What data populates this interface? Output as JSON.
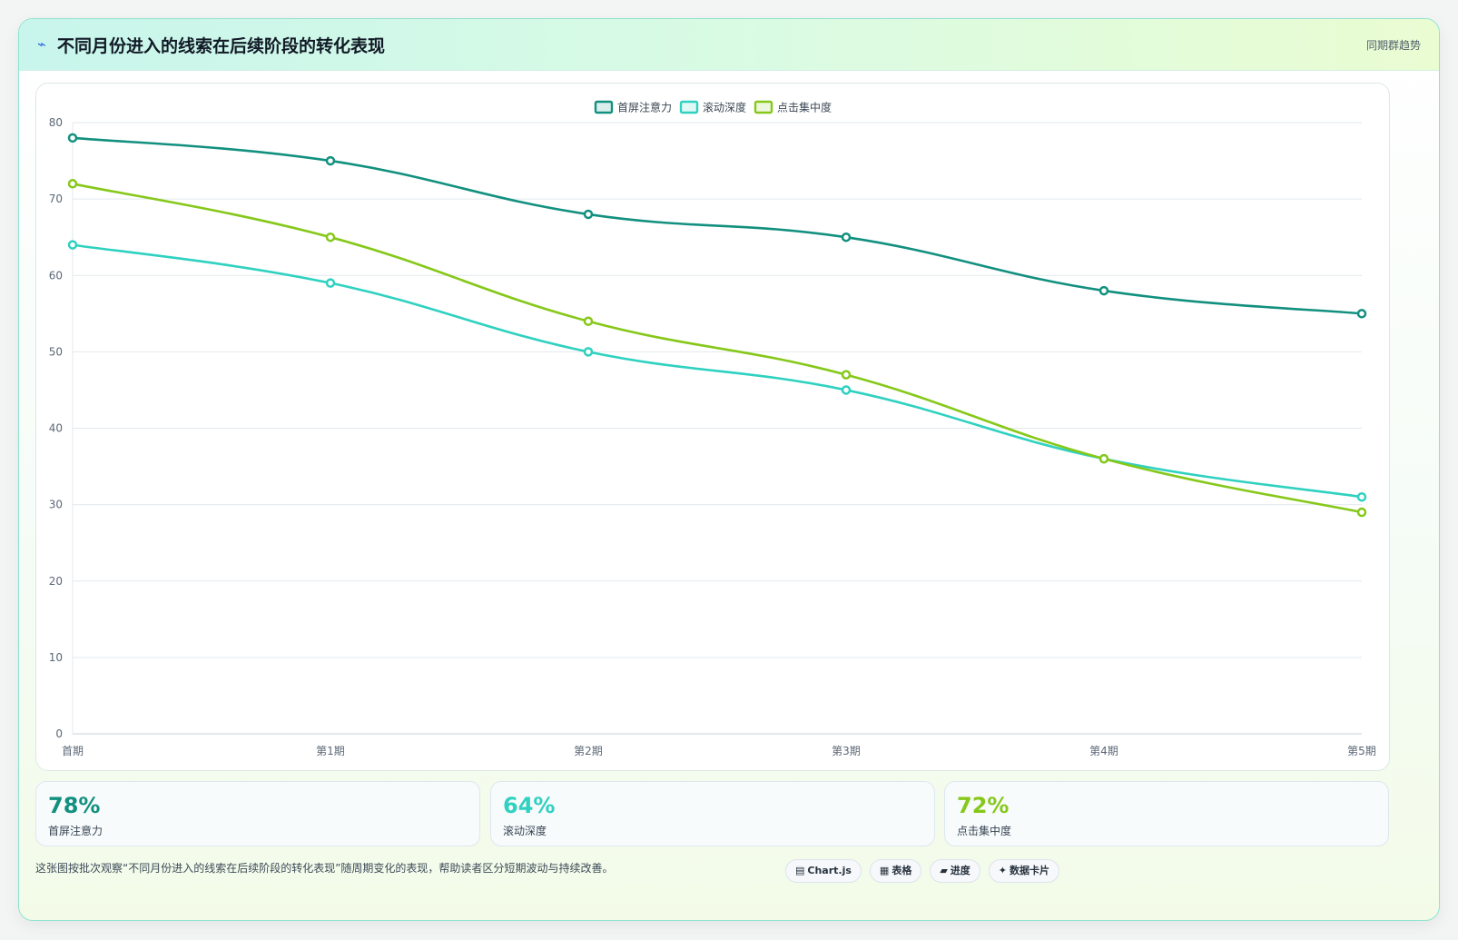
{
  "header": {
    "icon": "lightning-icon",
    "title": "不同月份进入的线索在后续阶段的转化表现",
    "right_label": "同期群趋势"
  },
  "chart_data": {
    "type": "line",
    "title": "",
    "xlabel": "",
    "ylabel": "",
    "categories": [
      "首期",
      "第1期",
      "第2期",
      "第3期",
      "第4期",
      "第5期"
    ],
    "ylim": [
      0,
      80
    ],
    "yticks": [
      0,
      10,
      20,
      30,
      40,
      50,
      60,
      70,
      80
    ],
    "grid": true,
    "legend_position": "top-center",
    "series": [
      {
        "name": "首屏注意力",
        "color": "#12907f",
        "values": [
          78,
          75,
          68,
          65,
          58,
          55
        ]
      },
      {
        "name": "滚动深度",
        "color": "#2fd1c0",
        "values": [
          64,
          59,
          50,
          45,
          36,
          31
        ]
      },
      {
        "name": "点击集中度",
        "color": "#86c81a",
        "values": [
          72,
          65,
          54,
          47,
          36,
          29
        ]
      }
    ]
  },
  "kpis": [
    {
      "value": "78%",
      "label": "首屏注意力",
      "color": "#12907f"
    },
    {
      "value": "64%",
      "label": "滚动深度",
      "color": "#2fd1c0"
    },
    {
      "value": "72%",
      "label": "点击集中度",
      "color": "#86c81a"
    }
  ],
  "footnote": "这张图按批次观察“不同月份进入的线索在后续阶段的转化表现”随周期变化的表现，帮助读者区分短期波动与持续改善。",
  "pills": [
    {
      "icon": "chart-icon",
      "glyph": "▤",
      "label": "Chart.js"
    },
    {
      "icon": "table-icon",
      "glyph": "▦",
      "label": "表格"
    },
    {
      "icon": "progress-icon",
      "glyph": "▰",
      "label": "进度"
    },
    {
      "icon": "sparkle-icon",
      "glyph": "✦",
      "label": "数据卡片"
    }
  ]
}
